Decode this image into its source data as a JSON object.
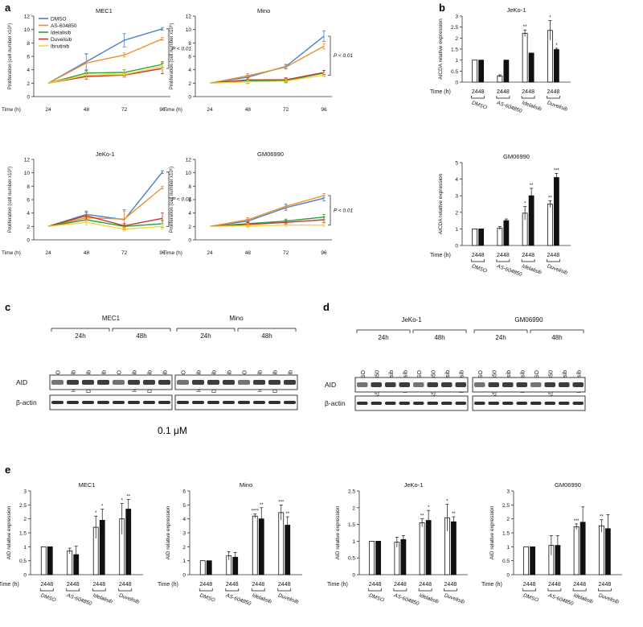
{
  "panels": {
    "a": "a",
    "b": "b",
    "c": "c",
    "d": "d",
    "e": "e"
  },
  "time_label": "Time (h)",
  "pvalue_label": "P < 0.01",
  "legend": [
    {
      "name": "DMSO",
      "color": "#4a7fc9"
    },
    {
      "name": "AS-604850",
      "color": "#e8902e"
    },
    {
      "name": "Idelalisib",
      "color": "#2e9e3e"
    },
    {
      "name": "Duvelisib",
      "color": "#c0392b"
    },
    {
      "name": "Ibrutinib",
      "color": "#f1d53a"
    }
  ],
  "prolif_ylabel": "Proliferation (cell number x10⁶)",
  "aicda_ylabel": "AICDA relative expression",
  "aid_ylabel": "AID relative expression",
  "concentration": "0.1 μM",
  "chart_data": [
    {
      "id": "a1",
      "type": "line",
      "title": "MEC1",
      "x": [
        24,
        48,
        72,
        96
      ],
      "ylim": [
        0,
        12
      ],
      "yticks": [
        0,
        2,
        4,
        6,
        8,
        10,
        12
      ],
      "series": [
        {
          "name": "DMSO",
          "values": [
            2,
            5.2,
            8.4,
            10.1
          ],
          "err": [
            0,
            1.2,
            1.0,
            0.2
          ]
        },
        {
          "name": "AS-604850",
          "values": [
            2,
            5.0,
            6.2,
            8.6
          ],
          "err": [
            0,
            1.3,
            0.3,
            0.2
          ]
        },
        {
          "name": "Idelalisib",
          "values": [
            2,
            3.5,
            3.6,
            4.8
          ],
          "err": [
            0,
            0.4,
            0.4,
            0.4
          ]
        },
        {
          "name": "Duvelisib",
          "values": [
            2,
            3.0,
            3.2,
            4.2
          ],
          "err": [
            0,
            0.4,
            0.3,
            0.8
          ]
        },
        {
          "name": "Ibrutinib",
          "values": [
            2,
            3.2,
            3.3,
            4.5
          ],
          "err": [
            0,
            0.4,
            0.3,
            0.4
          ]
        }
      ]
    },
    {
      "id": "a2",
      "type": "line",
      "title": "Mino",
      "x": [
        24,
        48,
        72,
        96
      ],
      "ylim": [
        0,
        12
      ],
      "yticks": [
        0,
        2,
        4,
        6,
        8,
        10,
        12
      ],
      "series": [
        {
          "name": "DMSO",
          "values": [
            2,
            2.9,
            4.5,
            9.0
          ],
          "err": [
            0,
            0.3,
            0.3,
            0.8
          ]
        },
        {
          "name": "AS-604850",
          "values": [
            2,
            3.1,
            4.4,
            7.5
          ],
          "err": [
            0,
            0.3,
            0.3,
            0.4
          ]
        },
        {
          "name": "Idelalisib",
          "values": [
            2,
            2.3,
            2.4,
            3.5
          ],
          "err": [
            0,
            0.3,
            0.3,
            0.4
          ]
        },
        {
          "name": "Duvelisib",
          "values": [
            2,
            2.5,
            2.5,
            3.6
          ],
          "err": [
            0,
            0.3,
            0.3,
            0.3
          ]
        },
        {
          "name": "Ibrutinib",
          "values": [
            2,
            2.2,
            2.3,
            3.2
          ],
          "err": [
            0,
            0.3,
            0.3,
            0.3
          ]
        }
      ]
    },
    {
      "id": "a3",
      "type": "line",
      "title": "JeKo-1",
      "x": [
        24,
        48,
        72,
        96
      ],
      "ylim": [
        0,
        12
      ],
      "yticks": [
        0,
        2,
        4,
        6,
        8,
        10,
        12
      ],
      "series": [
        {
          "name": "DMSO",
          "values": [
            2,
            3.8,
            3.0,
            10.1
          ],
          "err": [
            0,
            0.5,
            1.5,
            0.2
          ]
        },
        {
          "name": "AS-604850",
          "values": [
            2,
            3.3,
            3.1,
            7.8
          ],
          "err": [
            0,
            0.5,
            1.2,
            0.2
          ]
        },
        {
          "name": "Idelalisib",
          "values": [
            2,
            3.0,
            2.0,
            2.4
          ],
          "err": [
            0,
            0.4,
            0.4,
            0.5
          ]
        },
        {
          "name": "Duvelisib",
          "values": [
            2,
            3.6,
            2.1,
            3.2
          ],
          "err": [
            0,
            0.5,
            0.3,
            0.8
          ]
        },
        {
          "name": "Ibrutinib",
          "values": [
            2,
            2.6,
            1.6,
            2.0
          ],
          "err": [
            0,
            0.4,
            0.3,
            0.4
          ]
        }
      ]
    },
    {
      "id": "a4",
      "type": "line",
      "title": "GM06990",
      "x": [
        24,
        48,
        72,
        96
      ],
      "ylim": [
        0,
        12
      ],
      "yticks": [
        0,
        2,
        4,
        6,
        8,
        10,
        12
      ],
      "series": [
        {
          "name": "DMSO",
          "values": [
            2,
            2.8,
            4.8,
            6.2
          ],
          "err": [
            0,
            0.3,
            0.4,
            0.4
          ]
        },
        {
          "name": "AS-604850",
          "values": [
            2,
            3.0,
            5.0,
            6.6
          ],
          "err": [
            0,
            0.3,
            0.4,
            0.3
          ]
        },
        {
          "name": "Idelalisib",
          "values": [
            2,
            2.4,
            2.8,
            3.4
          ],
          "err": [
            0,
            0.3,
            0.3,
            0.4
          ]
        },
        {
          "name": "Duvelisib",
          "values": [
            2,
            2.3,
            2.6,
            3.0
          ],
          "err": [
            0,
            0.3,
            0.3,
            0.4
          ]
        },
        {
          "name": "Ibrutinib",
          "values": [
            2,
            2.1,
            2.2,
            2.2
          ],
          "err": [
            0,
            0.3,
            0.2,
            0.2
          ]
        }
      ]
    },
    {
      "id": "b1",
      "type": "bar",
      "title": "JeKo-1",
      "categories": [
        "DMSO",
        "AS-604850",
        "Idelalisib",
        "Duvelisib"
      ],
      "sub": [
        "24",
        "48"
      ],
      "ylim": [
        0,
        3
      ],
      "yticks": [
        0,
        0.5,
        1,
        1.5,
        2,
        2.5,
        3
      ],
      "values24": [
        1,
        0.28,
        2.22,
        2.35
      ],
      "values48": [
        1,
        1,
        1.32,
        1.48
      ],
      "err24": [
        0,
        0.05,
        0.15,
        0.45
      ],
      "err48": [
        0,
        0,
        0,
        0.06
      ],
      "stars24": [
        "",
        "",
        "**",
        "*"
      ],
      "stars48": [
        "",
        "",
        "",
        "*"
      ]
    },
    {
      "id": "b2",
      "type": "bar",
      "title": "GM06990",
      "categories": [
        "DMSO",
        "AS-604850",
        "Idelalisib",
        "Duvelisib"
      ],
      "sub": [
        "24",
        "48"
      ],
      "ylim": [
        0,
        5
      ],
      "yticks": [
        0,
        1,
        2,
        3,
        4,
        5
      ],
      "values24": [
        1,
        1.05,
        1.95,
        2.5
      ],
      "values48": [
        1,
        1.5,
        3.0,
        4.1
      ],
      "err24": [
        0,
        0.1,
        0.4,
        0.2
      ],
      "err48": [
        0,
        0.1,
        0.45,
        0.25
      ],
      "stars24": [
        "",
        "",
        "*",
        "**"
      ],
      "stars48": [
        "",
        "",
        "**",
        "***"
      ]
    },
    {
      "id": "e1",
      "type": "bar",
      "title": "MEC1",
      "categories": [
        "DMSO",
        "AS-604850",
        "Idelalisib",
        "Duvelisib"
      ],
      "sub": [
        "24",
        "48"
      ],
      "ylim": [
        0,
        3
      ],
      "yticks": [
        0,
        0.5,
        1,
        1.5,
        2,
        2.5,
        3
      ],
      "values24": [
        1,
        0.85,
        1.7,
        2.0
      ],
      "values48": [
        1,
        0.72,
        1.95,
        2.35
      ],
      "err24": [
        0,
        0.1,
        0.4,
        0.55
      ],
      "err48": [
        0,
        0.3,
        0.4,
        0.35
      ],
      "stars24": [
        "",
        "",
        "*",
        "*"
      ],
      "stars48": [
        "",
        "",
        "*",
        "**"
      ]
    },
    {
      "id": "e2",
      "type": "bar",
      "title": "Mino",
      "categories": [
        "DMSO",
        "AS-604850",
        "Idelalisib",
        "Duvelisib"
      ],
      "sub": [
        "24",
        "48"
      ],
      "ylim": [
        0,
        6
      ],
      "yticks": [
        0,
        1,
        2,
        3,
        4,
        5,
        6
      ],
      "values24": [
        1,
        1.35,
        4.2,
        4.45
      ],
      "values48": [
        1,
        1.25,
        4.0,
        3.55
      ],
      "err24": [
        0,
        0.3,
        0.15,
        0.55
      ],
      "err48": [
        0,
        0.35,
        0.8,
        0.6
      ],
      "stars24": [
        "",
        "",
        "****",
        "***"
      ],
      "stars48": [
        "",
        "",
        "**",
        "**"
      ]
    },
    {
      "id": "e3",
      "type": "bar",
      "title": "JeKo-1",
      "categories": [
        "DMSO",
        "AS-604850",
        "Idelalisib",
        "Duvelisib"
      ],
      "sub": [
        "24",
        "48"
      ],
      "ylim": [
        0,
        2.5
      ],
      "yticks": [
        0,
        0.5,
        1,
        1.5,
        2,
        2.5
      ],
      "values24": [
        1,
        0.97,
        1.55,
        1.7
      ],
      "values48": [
        1,
        1.05,
        1.62,
        1.58
      ],
      "err24": [
        0,
        0.15,
        0.12,
        0.4
      ],
      "err48": [
        0,
        0.12,
        0.3,
        0.15
      ],
      "stars24": [
        "",
        "",
        "**",
        "*"
      ],
      "stars48": [
        "",
        "",
        "*",
        "**"
      ]
    },
    {
      "id": "e4",
      "type": "bar",
      "title": "GM06990",
      "categories": [
        "DMSO",
        "AS-604850",
        "Idelalisib",
        "Duvelisib"
      ],
      "sub": [
        "24",
        "48"
      ],
      "ylim": [
        0,
        3
      ],
      "yticks": [
        0,
        0.5,
        1,
        1.5,
        2,
        2.5,
        3
      ],
      "values24": [
        1,
        1.05,
        1.72,
        1.75
      ],
      "values48": [
        1,
        1.05,
        1.88,
        1.65
      ],
      "err24": [
        0,
        0.35,
        0.1,
        0.22
      ],
      "err48": [
        0,
        0.35,
        0.55,
        0.5
      ],
      "stars24": [
        "",
        "",
        "***",
        "**"
      ],
      "stars48": [
        "",
        "",
        "",
        ""
      ]
    }
  ],
  "blots": {
    "c": {
      "groups": [
        {
          "title": "MEC1",
          "times": [
            "24h",
            "48h"
          ],
          "lanes": [
            "DMSO",
            "Idelalisib",
            "Duvelisib",
            "Ibrutinib",
            "DMSO",
            "Idelalisib",
            "Duvelisib",
            "Ibrutinib"
          ]
        },
        {
          "title": "Mino",
          "times": [
            "24h",
            "48h"
          ],
          "lanes": [
            "DMSO",
            "Idelalisib",
            "Duvelisib",
            "Ibrutinib",
            "DMSO",
            "Idelalisib",
            "Duvelisib",
            "Ibrutinib"
          ]
        }
      ],
      "rows": [
        "AID",
        "β-actin"
      ]
    },
    "d": {
      "groups": [
        {
          "title": "JeKo-1",
          "times": [
            "24h",
            "48h"
          ],
          "lanes": [
            "DMSO",
            "AS-604850",
            "Idelalisib",
            "Duvelisib",
            "DMSO",
            "AS-604850",
            "Idelalisib",
            "Duvelisib"
          ]
        },
        {
          "title": "GM06990",
          "times": [
            "24h",
            "48h"
          ],
          "lanes": [
            "DMSO",
            "AS-604850",
            "Idelalisib",
            "Duvelisib",
            "DMSO",
            "AS-604850",
            "Idelalisib",
            "Duvelisib"
          ]
        }
      ],
      "rows": [
        "AID",
        "β-actin"
      ]
    }
  }
}
